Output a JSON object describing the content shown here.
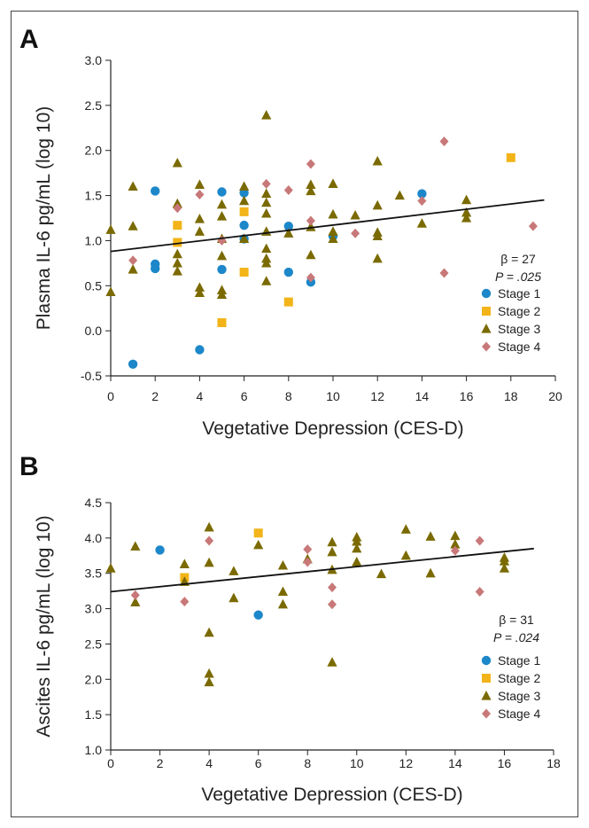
{
  "chart_data": [
    {
      "type": "scatter",
      "panel_label": "A",
      "xlabel": "Vegetative Depression (CES-D)",
      "ylabel": "Plasma IL-6 pg/mL (log 10)",
      "xlim": [
        0,
        20
      ],
      "ylim": [
        -0.5,
        3.0
      ],
      "xticks": [
        "0",
        "2",
        "4",
        "6",
        "8",
        "10",
        "12",
        "14",
        "16",
        "18",
        "20"
      ],
      "yticks": [
        "-0.5",
        "0.0",
        "0.5",
        "1.0",
        "1.5",
        "2.0",
        "2.5",
        "3.0"
      ],
      "grid": false,
      "legend_position": "bottom-right",
      "stats": {
        "beta": "β = 27",
        "p": "P = .025"
      },
      "regression": {
        "x": [
          0,
          19.5
        ],
        "y": [
          0.88,
          1.45
        ]
      },
      "series": [
        {
          "name": "Stage 1",
          "marker": "circle",
          "color": "#1c87c9",
          "points": [
            [
              1,
              -0.37
            ],
            [
              2,
              0.69
            ],
            [
              2,
              0.74
            ],
            [
              2,
              1.55
            ],
            [
              4,
              -0.21
            ],
            [
              5,
              0.68
            ],
            [
              5,
              1.54
            ],
            [
              6,
              1.02
            ],
            [
              6,
              1.17
            ],
            [
              6,
              1.53
            ],
            [
              8,
              0.65
            ],
            [
              8,
              1.16
            ],
            [
              9,
              0.54
            ],
            [
              10,
              1.05
            ],
            [
              14,
              1.52
            ]
          ]
        },
        {
          "name": "Stage 2",
          "marker": "square",
          "color": "#f2b418",
          "points": [
            [
              3,
              0.98
            ],
            [
              3,
              1.17
            ],
            [
              5,
              0.09
            ],
            [
              6,
              0.65
            ],
            [
              6,
              1.32
            ],
            [
              8,
              0.32
            ],
            [
              18,
              1.92
            ]
          ]
        },
        {
          "name": "Stage 3",
          "marker": "triangle",
          "color": "#7a6a00",
          "points": [
            [
              0,
              0.43
            ],
            [
              0,
              1.12
            ],
            [
              1,
              0.68
            ],
            [
              1,
              1.16
            ],
            [
              1,
              1.6
            ],
            [
              3,
              0.66
            ],
            [
              3,
              0.75
            ],
            [
              3,
              0.85
            ],
            [
              3,
              1.41
            ],
            [
              3,
              1.86
            ],
            [
              4,
              0.42
            ],
            [
              4,
              0.48
            ],
            [
              4,
              1.1
            ],
            [
              4,
              1.24
            ],
            [
              4,
              1.62
            ],
            [
              5,
              0.4
            ],
            [
              5,
              0.45
            ],
            [
              5,
              0.83
            ],
            [
              5,
              1.02
            ],
            [
              5,
              1.27
            ],
            [
              5,
              1.4
            ],
            [
              6,
              1.02
            ],
            [
              6,
              1.44
            ],
            [
              6,
              1.6
            ],
            [
              7,
              0.55
            ],
            [
              7,
              0.75
            ],
            [
              7,
              0.8
            ],
            [
              7,
              0.91
            ],
            [
              7,
              1.1
            ],
            [
              7,
              1.3
            ],
            [
              7,
              1.42
            ],
            [
              7,
              1.52
            ],
            [
              7,
              2.39
            ],
            [
              8,
              1.08
            ],
            [
              9,
              0.84
            ],
            [
              9,
              1.15
            ],
            [
              9,
              1.55
            ],
            [
              9,
              1.62
            ],
            [
              10,
              1.02
            ],
            [
              10,
              1.1
            ],
            [
              10,
              1.29
            ],
            [
              10,
              1.63
            ],
            [
              11,
              1.28
            ],
            [
              12,
              0.8
            ],
            [
              12,
              1.05
            ],
            [
              12,
              1.09
            ],
            [
              12,
              1.39
            ],
            [
              12,
              1.88
            ],
            [
              13,
              1.5
            ],
            [
              14,
              1.19
            ],
            [
              16,
              1.25
            ],
            [
              16,
              1.31
            ],
            [
              16,
              1.45
            ]
          ]
        },
        {
          "name": "Stage 4",
          "marker": "diamond",
          "color": "#c87878",
          "points": [
            [
              1,
              0.78
            ],
            [
              3,
              1.36
            ],
            [
              4,
              1.51
            ],
            [
              5,
              1.0
            ],
            [
              7,
              1.63
            ],
            [
              8,
              1.56
            ],
            [
              9,
              0.59
            ],
            [
              9,
              1.22
            ],
            [
              9,
              1.85
            ],
            [
              11,
              1.08
            ],
            [
              14,
              1.44
            ],
            [
              15,
              0.64
            ],
            [
              15,
              2.1
            ],
            [
              19,
              1.16
            ]
          ]
        }
      ]
    },
    {
      "type": "scatter",
      "panel_label": "B",
      "xlabel": "Vegetative Depression (CES-D)",
      "ylabel": "Ascites IL-6 pg/mL (log 10)",
      "xlim": [
        0,
        18
      ],
      "ylim": [
        1.0,
        4.5
      ],
      "xticks": [
        "0",
        "2",
        "4",
        "6",
        "8",
        "10",
        "12",
        "14",
        "16",
        "18"
      ],
      "yticks": [
        "1.0",
        "1.5",
        "2.0",
        "2.5",
        "3.0",
        "3.5",
        "4.0",
        "4.5"
      ],
      "grid": false,
      "legend_position": "bottom-right",
      "stats": {
        "beta": "β = 31",
        "p": "P = .024"
      },
      "regression": {
        "x": [
          0,
          17.2
        ],
        "y": [
          3.24,
          3.85
        ]
      },
      "series": [
        {
          "name": "Stage 1",
          "marker": "circle",
          "color": "#1c87c9",
          "points": [
            [
              2,
              3.83
            ],
            [
              6,
              2.91
            ]
          ]
        },
        {
          "name": "Stage 2",
          "marker": "square",
          "color": "#f2b418",
          "points": [
            [
              3,
              3.44
            ],
            [
              6,
              4.07
            ]
          ]
        },
        {
          "name": "Stage 3",
          "marker": "triangle",
          "color": "#7a6a00",
          "points": [
            [
              0,
              3.57
            ],
            [
              1,
              3.09
            ],
            [
              1,
              3.88
            ],
            [
              3,
              3.38
            ],
            [
              3,
              3.63
            ],
            [
              4,
              1.96
            ],
            [
              4,
              2.08
            ],
            [
              4,
              2.66
            ],
            [
              4,
              3.65
            ],
            [
              4,
              4.15
            ],
            [
              5,
              3.15
            ],
            [
              5,
              3.53
            ],
            [
              6,
              3.9
            ],
            [
              7,
              3.06
            ],
            [
              7,
              3.24
            ],
            [
              7,
              3.61
            ],
            [
              8,
              3.7
            ],
            [
              9,
              2.24
            ],
            [
              9,
              3.55
            ],
            [
              9,
              3.8
            ],
            [
              9,
              3.94
            ],
            [
              10,
              3.66
            ],
            [
              10,
              3.85
            ],
            [
              10,
              3.95
            ],
            [
              10,
              4.01
            ],
            [
              11,
              3.49
            ],
            [
              12,
              3.75
            ],
            [
              12,
              4.12
            ],
            [
              13,
              3.5
            ],
            [
              13,
              4.02
            ],
            [
              14,
              3.91
            ],
            [
              14,
              4.03
            ],
            [
              16,
              3.57
            ],
            [
              16,
              3.67
            ],
            [
              16,
              3.72
            ]
          ]
        },
        {
          "name": "Stage 4",
          "marker": "diamond",
          "color": "#c87878",
          "points": [
            [
              1,
              3.19
            ],
            [
              3,
              3.1
            ],
            [
              4,
              3.96
            ],
            [
              8,
              3.66
            ],
            [
              8,
              3.84
            ],
            [
              9,
              3.06
            ],
            [
              9,
              3.3
            ],
            [
              14,
              3.82
            ],
            [
              15,
              3.24
            ],
            [
              15,
              3.96
            ]
          ]
        }
      ]
    }
  ]
}
